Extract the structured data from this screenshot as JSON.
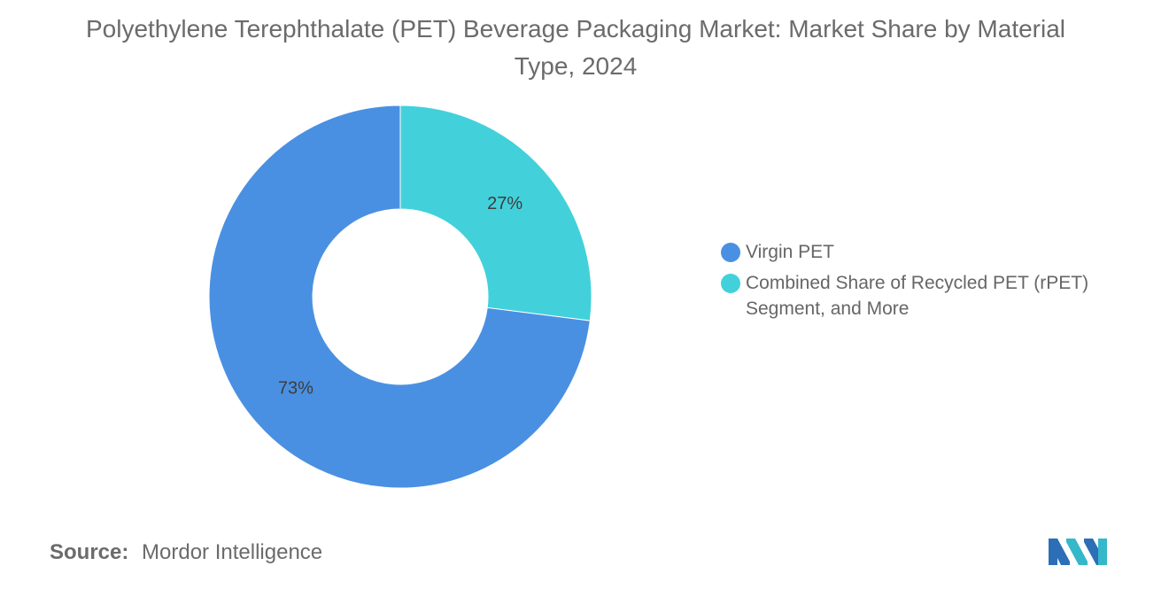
{
  "chart_data": {
    "type": "pie",
    "title": "Polyethylene Terephthalate (PET) Beverage Packaging Market: Market Share by Material Type, 2024",
    "donut": true,
    "slices": [
      {
        "name": "Combined Share of Recycled PET (rPET) Segment, and More",
        "value": 27,
        "label": "27%",
        "color": "#42D1DA"
      },
      {
        "name": "Virgin PET",
        "value": 73,
        "label": "73%",
        "color": "#4A90E2"
      }
    ],
    "legend_placement": "right",
    "legend": [
      {
        "label": "Virgin PET",
        "color": "#4A90E2"
      },
      {
        "label": "Combined Share of Recycled PET (rPET) Segment, and More",
        "color": "#42D1DA"
      }
    ]
  },
  "source": {
    "label": "Source:",
    "value": "Mordor Intelligence"
  },
  "logo": {
    "icon": "mordor-intelligence-logo",
    "colors": [
      "#2C6FB7",
      "#35B8C9"
    ]
  }
}
